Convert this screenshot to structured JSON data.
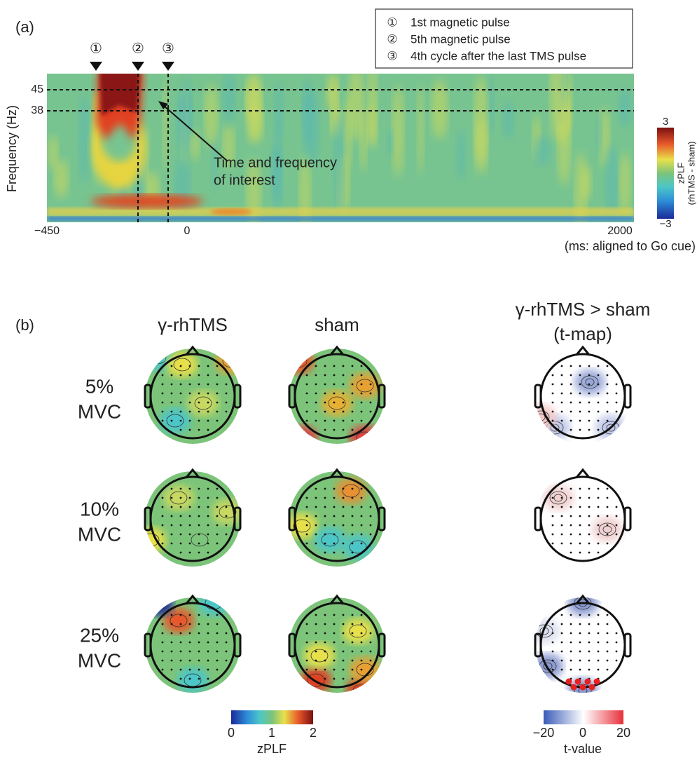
{
  "panel_a": {
    "label": "(a)",
    "legend": [
      {
        "marker": "①",
        "text": "1st magnetic pulse"
      },
      {
        "marker": "②",
        "text": "5th magnetic pulse"
      },
      {
        "marker": "③",
        "text": "4th cycle after the last TMS pulse"
      }
    ],
    "y_axis_label": "Frequency (Hz)",
    "y_ticks": [
      "45",
      "38"
    ],
    "x_ticks": [
      "−450",
      "0",
      "2000"
    ],
    "x_axis_label": "(ms: aligned to Go cue)",
    "annotation": [
      "Time and frequency",
      "of interest"
    ],
    "colorbar": {
      "max": "3",
      "min": "−3",
      "label": "zPLF",
      "sublabel": "(rhTMS - sham)"
    }
  },
  "panel_b": {
    "label": "(b)",
    "columns": [
      [
        "γ-rhTMS"
      ],
      [
        "sham"
      ],
      [
        "γ-rhTMS > sham",
        "(t-map)"
      ]
    ],
    "rows": [
      [
        "5%",
        "MVC"
      ],
      [
        "10%",
        "MVC"
      ],
      [
        "25%",
        "MVC"
      ]
    ],
    "zplf_colorbar": {
      "ticks": [
        "0",
        "1",
        "2"
      ],
      "label": "zPLF"
    },
    "t_colorbar": {
      "ticks": [
        "−20",
        "0",
        "20"
      ],
      "label": "t-value"
    }
  }
}
